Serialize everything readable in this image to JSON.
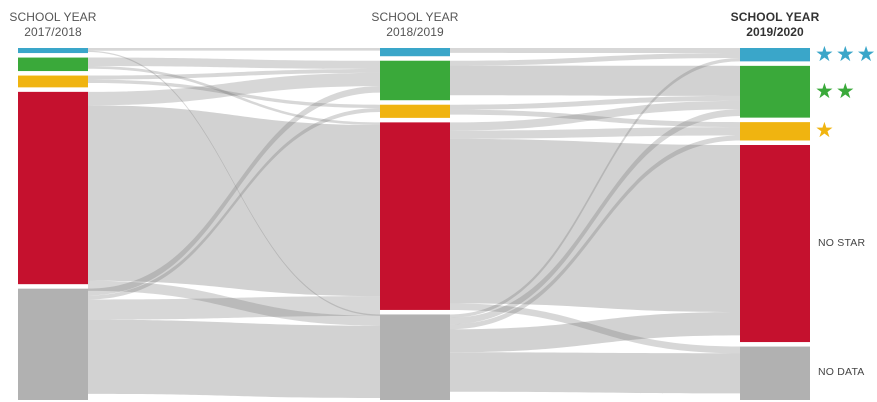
{
  "chart_data": {
    "type": "sankey",
    "columns": [
      {
        "header": [
          "SCHOOL YEAR",
          "2017/2018"
        ],
        "nodes": [
          {
            "category": "three_star",
            "color": "#3aa6c9",
            "value": 1.5
          },
          {
            "category": "two_star",
            "color": "#3aa93a",
            "value": 4.0
          },
          {
            "category": "one_star",
            "color": "#f0b410",
            "value": 3.5
          },
          {
            "category": "no_star",
            "color": "#c5112e",
            "value": 57.0
          },
          {
            "category": "no_data",
            "color": "#b1b1b1",
            "value": 33.0
          }
        ]
      },
      {
        "header": [
          "SCHOOL YEAR",
          "2018/2019"
        ],
        "nodes": [
          {
            "category": "three_star",
            "color": "#3aa6c9",
            "value": 2.5
          },
          {
            "category": "two_star",
            "color": "#3aa93a",
            "value": 12.0
          },
          {
            "category": "one_star",
            "color": "#f0b410",
            "value": 4.0
          },
          {
            "category": "no_star",
            "color": "#c5112e",
            "value": 57.0
          },
          {
            "category": "no_data",
            "color": "#b1b1b1",
            "value": 26.0
          }
        ]
      },
      {
        "header": [
          "SCHOOL YEAR",
          "2019/2020"
        ],
        "nodes": [
          {
            "category": "three_star",
            "color": "#3aa6c9",
            "value": 4.0
          },
          {
            "category": "two_star",
            "color": "#3aa93a",
            "value": 15.5
          },
          {
            "category": "one_star",
            "color": "#f0b410",
            "value": 5.5
          },
          {
            "category": "no_star",
            "color": "#c5112e",
            "value": 59.0
          },
          {
            "category": "no_data",
            "color": "#b1b1b1",
            "value": 16.0
          }
        ]
      }
    ],
    "flows": [
      {
        "stage": 0,
        "from": "no_star",
        "to": "no_star",
        "value": 52,
        "dark": false
      },
      {
        "stage": 0,
        "from": "no_data",
        "to": "no_data",
        "value": 22,
        "dark": false
      },
      {
        "stage": 0,
        "from": "no_star",
        "to": "two_star",
        "value": 4,
        "dark": true
      },
      {
        "stage": 0,
        "from": "no_data",
        "to": "no_star",
        "value": 6,
        "dark": true
      },
      {
        "stage": 0,
        "from": "three_star",
        "to": "three_star",
        "value": 0.8,
        "dark": true
      },
      {
        "stage": 0,
        "from": "two_star",
        "to": "two_star",
        "value": 2.5,
        "dark": true
      },
      {
        "stage": 0,
        "from": "two_star",
        "to": "no_star",
        "value": 0.8,
        "dark": true
      },
      {
        "stage": 0,
        "from": "one_star",
        "to": "two_star",
        "value": 1.2,
        "dark": true
      },
      {
        "stage": 0,
        "from": "one_star",
        "to": "one_star",
        "value": 1.0,
        "dark": true
      },
      {
        "stage": 0,
        "from": "no_star",
        "to": "no_data",
        "value": 3,
        "dark": true
      },
      {
        "stage": 0,
        "from": "three_star",
        "to": "no_data",
        "value": 0.4,
        "dark": true
      },
      {
        "stage": 0,
        "from": "no_data",
        "to": "two_star",
        "value": 2,
        "dark": true
      },
      {
        "stage": 0,
        "from": "no_data",
        "to": "one_star",
        "value": 1.2,
        "dark": true
      },
      {
        "stage": 1,
        "from": "no_star",
        "to": "no_star",
        "value": 50,
        "dark": false
      },
      {
        "stage": 1,
        "from": "no_data",
        "to": "no_data",
        "value": 12,
        "dark": false
      },
      {
        "stage": 1,
        "from": "two_star",
        "to": "two_star",
        "value": 9,
        "dark": false
      },
      {
        "stage": 1,
        "from": "no_data",
        "to": "no_star",
        "value": 7,
        "dark": false
      },
      {
        "stage": 1,
        "from": "no_star",
        "to": "one_star",
        "value": 2.5,
        "dark": true
      },
      {
        "stage": 1,
        "from": "no_star",
        "to": "two_star",
        "value": 2.5,
        "dark": true
      },
      {
        "stage": 1,
        "from": "no_star",
        "to": "no_data",
        "value": 2,
        "dark": true
      },
      {
        "stage": 1,
        "from": "three_star",
        "to": "three_star",
        "value": 1.5,
        "dark": true
      },
      {
        "stage": 1,
        "from": "two_star",
        "to": "three_star",
        "value": 1.5,
        "dark": true
      },
      {
        "stage": 1,
        "from": "one_star",
        "to": "two_star",
        "value": 1.5,
        "dark": true
      },
      {
        "stage": 1,
        "from": "one_star",
        "to": "one_star",
        "value": 1.5,
        "dark": true
      },
      {
        "stage": 1,
        "from": "no_data",
        "to": "two_star",
        "value": 2,
        "dark": true
      },
      {
        "stage": 1,
        "from": "no_data",
        "to": "one_star",
        "value": 1.5,
        "dark": true
      },
      {
        "stage": 1,
        "from": "no_data",
        "to": "three_star",
        "value": 1,
        "dark": true
      }
    ]
  },
  "row_labels": [
    {
      "category": "three_star",
      "stars": 3,
      "color": "#3aa6c9",
      "text": ""
    },
    {
      "category": "two_star",
      "stars": 2,
      "color": "#3aa93a",
      "text": ""
    },
    {
      "category": "one_star",
      "stars": 1,
      "color": "#f0b410",
      "text": ""
    },
    {
      "category": "no_star",
      "stars": 0,
      "color": "",
      "text": "NO STAR"
    },
    {
      "category": "no_data",
      "stars": 0,
      "color": "",
      "text": "NO DATA"
    }
  ],
  "icons": {
    "star": "star-icon"
  },
  "colors": {
    "light_flow": "#d2d2d2",
    "dark_flow": "#707070",
    "background": "#ffffff"
  }
}
